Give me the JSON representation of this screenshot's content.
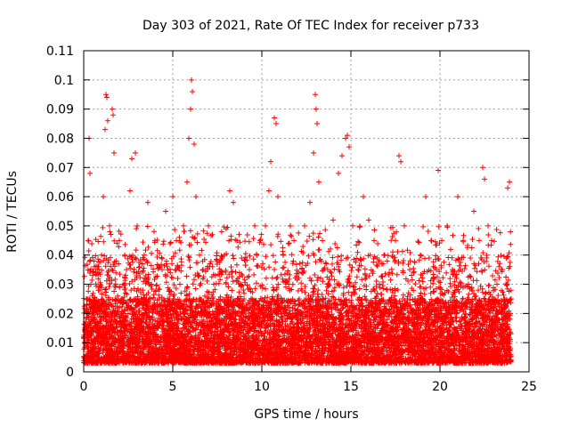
{
  "chart_data": {
    "type": "scatter",
    "title": "Day 303 of 2021, Rate Of TEC Index for receiver p733",
    "xlabel": "GPS time / hours",
    "ylabel": "ROTI / TECUs",
    "xlim": [
      0,
      25
    ],
    "ylim": [
      0,
      0.11
    ],
    "xticks": [
      "0",
      "5",
      "10",
      "15",
      "20",
      "25"
    ],
    "yticks": [
      "0",
      "0.01",
      "0.02",
      "0.03",
      "0.04",
      "0.05",
      "0.06",
      "0.07",
      "0.08",
      "0.09",
      "0.1",
      "0.11"
    ],
    "grid": true,
    "marker": "+",
    "color": "#ff0000",
    "series": [
      {
        "points": [
          [
            0.05,
            0.012
          ],
          [
            0.15,
            0.025
          ],
          [
            0.25,
            0.045
          ],
          [
            0.3,
            0.08
          ],
          [
            0.35,
            0.068
          ],
          [
            0.4,
            0.03
          ],
          [
            0.5,
            0.018
          ],
          [
            0.6,
            0.036
          ],
          [
            0.7,
            0.022
          ],
          [
            0.8,
            0.015
          ],
          [
            0.9,
            0.028
          ],
          [
            1.0,
            0.04
          ],
          [
            1.1,
            0.06
          ],
          [
            1.2,
            0.083
          ],
          [
            1.25,
            0.095
          ],
          [
            1.3,
            0.094
          ],
          [
            1.35,
            0.086
          ],
          [
            1.45,
            0.05
          ],
          [
            1.6,
            0.09
          ],
          [
            1.65,
            0.088
          ],
          [
            1.7,
            0.075
          ],
          [
            1.8,
            0.03
          ],
          [
            2.0,
            0.045
          ],
          [
            2.2,
            0.02
          ],
          [
            2.4,
            0.035
          ],
          [
            2.6,
            0.062
          ],
          [
            2.7,
            0.073
          ],
          [
            2.9,
            0.075
          ],
          [
            3.0,
            0.05
          ],
          [
            3.2,
            0.028
          ],
          [
            3.4,
            0.04
          ],
          [
            3.6,
            0.058
          ],
          [
            3.8,
            0.03
          ],
          [
            4.0,
            0.045
          ],
          [
            4.2,
            0.02
          ],
          [
            4.4,
            0.035
          ],
          [
            4.6,
            0.055
          ],
          [
            4.8,
            0.025
          ],
          [
            5.0,
            0.06
          ],
          [
            5.2,
            0.045
          ],
          [
            5.4,
            0.03
          ],
          [
            5.6,
            0.05
          ],
          [
            5.8,
            0.065
          ],
          [
            5.9,
            0.08
          ],
          [
            6.0,
            0.09
          ],
          [
            6.05,
            0.1
          ],
          [
            6.1,
            0.096
          ],
          [
            6.2,
            0.078
          ],
          [
            6.3,
            0.06
          ],
          [
            6.5,
            0.04
          ],
          [
            6.7,
            0.035
          ],
          [
            7.0,
            0.05
          ],
          [
            7.3,
            0.03
          ],
          [
            7.6,
            0.02
          ],
          [
            7.9,
            0.04
          ],
          [
            8.2,
            0.062
          ],
          [
            8.4,
            0.058
          ],
          [
            8.6,
            0.045
          ],
          [
            8.8,
            0.03
          ],
          [
            9.0,
            0.025
          ],
          [
            9.3,
            0.035
          ],
          [
            9.6,
            0.05
          ],
          [
            9.9,
            0.045
          ],
          [
            10.2,
            0.05
          ],
          [
            10.4,
            0.062
          ],
          [
            10.5,
            0.072
          ],
          [
            10.7,
            0.087
          ],
          [
            10.8,
            0.085
          ],
          [
            10.9,
            0.06
          ],
          [
            11.2,
            0.04
          ],
          [
            11.5,
            0.03
          ],
          [
            11.8,
            0.045
          ],
          [
            12.1,
            0.025
          ],
          [
            12.4,
            0.05
          ],
          [
            12.7,
            0.058
          ],
          [
            12.9,
            0.075
          ],
          [
            13.0,
            0.095
          ],
          [
            13.05,
            0.09
          ],
          [
            13.1,
            0.085
          ],
          [
            13.2,
            0.065
          ],
          [
            13.4,
            0.045
          ],
          [
            13.7,
            0.03
          ],
          [
            14.0,
            0.052
          ],
          [
            14.3,
            0.068
          ],
          [
            14.5,
            0.074
          ],
          [
            14.7,
            0.08
          ],
          [
            14.8,
            0.081
          ],
          [
            14.9,
            0.077
          ],
          [
            15.1,
            0.05
          ],
          [
            15.4,
            0.035
          ],
          [
            15.7,
            0.06
          ],
          [
            16.0,
            0.052
          ],
          [
            16.3,
            0.045
          ],
          [
            16.6,
            0.03
          ],
          [
            16.9,
            0.04
          ],
          [
            17.2,
            0.02
          ],
          [
            17.5,
            0.045
          ],
          [
            17.7,
            0.074
          ],
          [
            17.8,
            0.072
          ],
          [
            18.0,
            0.05
          ],
          [
            18.3,
            0.035
          ],
          [
            18.6,
            0.025
          ],
          [
            18.9,
            0.04
          ],
          [
            19.2,
            0.06
          ],
          [
            19.5,
            0.045
          ],
          [
            19.8,
            0.035
          ],
          [
            19.9,
            0.069
          ],
          [
            20.1,
            0.045
          ],
          [
            20.4,
            0.05
          ],
          [
            20.7,
            0.035
          ],
          [
            21.0,
            0.06
          ],
          [
            21.3,
            0.045
          ],
          [
            21.6,
            0.03
          ],
          [
            21.9,
            0.055
          ],
          [
            22.2,
            0.045
          ],
          [
            22.4,
            0.07
          ],
          [
            22.5,
            0.066
          ],
          [
            22.7,
            0.05
          ],
          [
            22.9,
            0.045
          ],
          [
            23.2,
            0.03
          ],
          [
            23.5,
            0.035
          ],
          [
            23.8,
            0.063
          ],
          [
            23.9,
            0.065
          ],
          [
            23.95,
            0.02
          ]
        ]
      }
    ]
  }
}
